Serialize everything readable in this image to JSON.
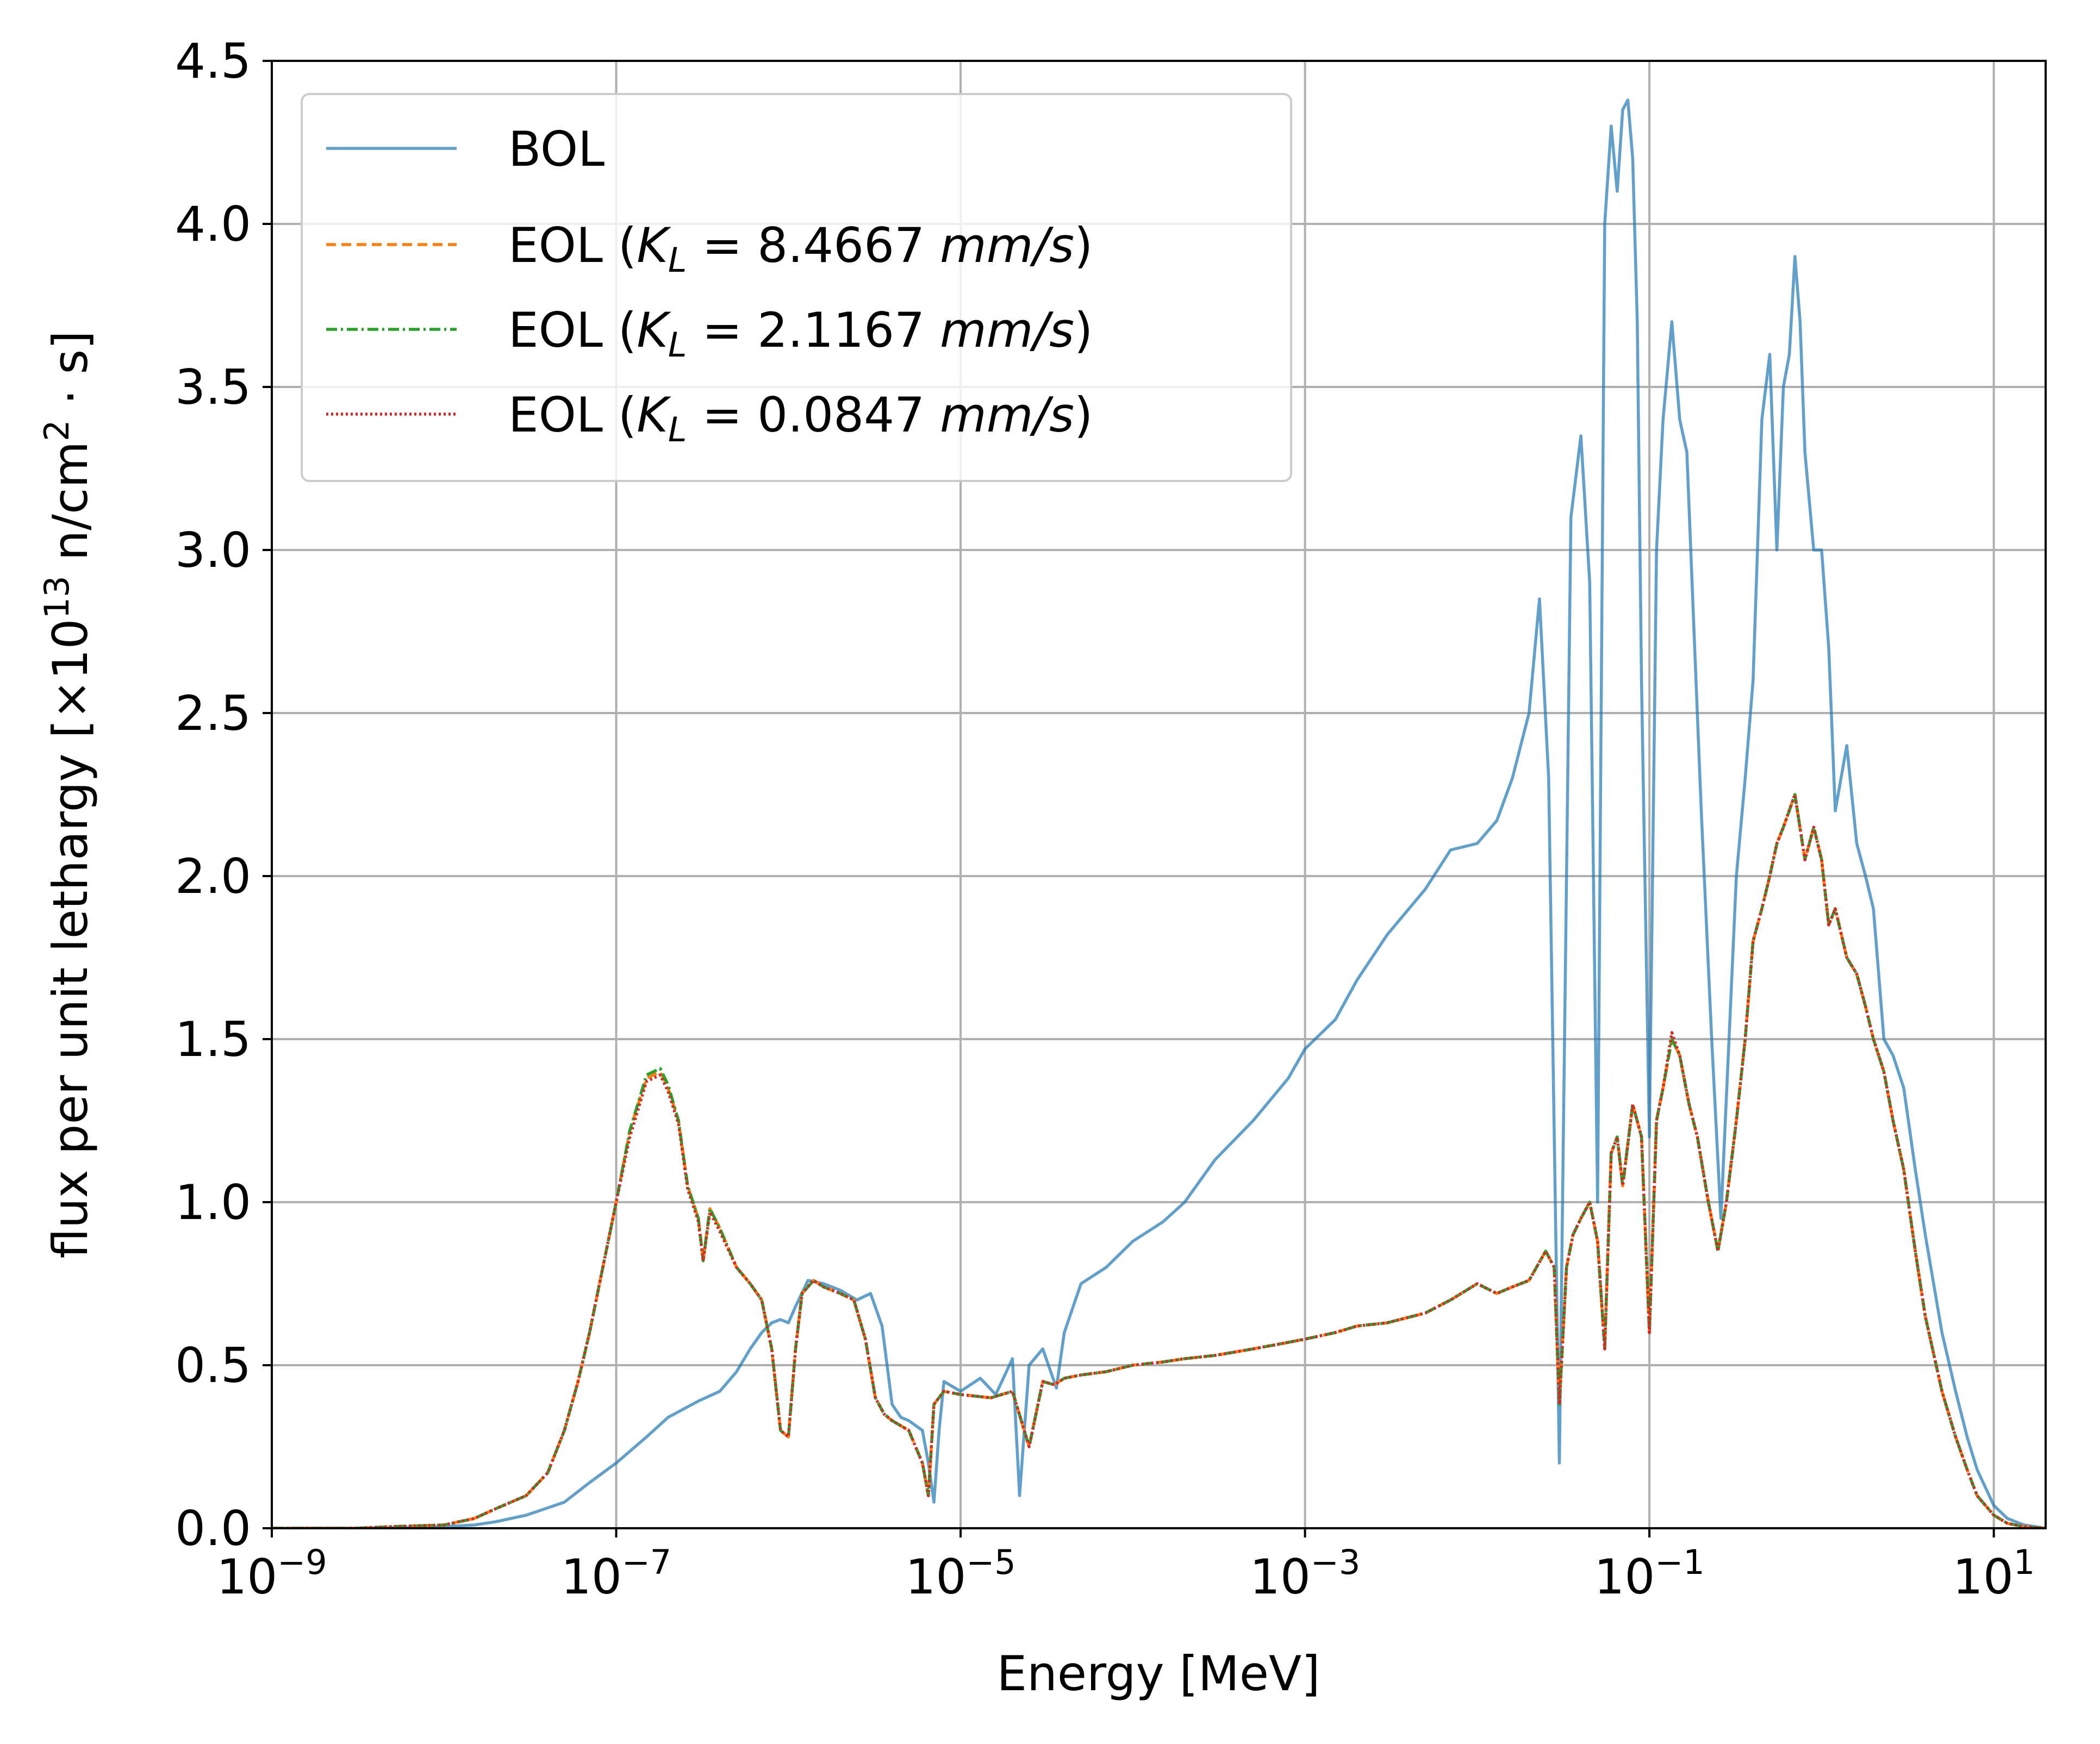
{
  "chart_data": {
    "type": "line",
    "title": "",
    "xlabel": "Energy [MeV]",
    "ylabel": {
      "main": "flux per unit lethargy [",
      "times": "×10",
      "exp": "13",
      "unit": " n/cm",
      "unit_exp": "2",
      "tail": " · s]"
    },
    "xscale": "log",
    "xlim": [
      1e-09,
      20
    ],
    "ylim": [
      0,
      4.5
    ],
    "grid": true,
    "legend_position": "top-left",
    "x_ticks": [
      {
        "value": 1e-09,
        "base": "10",
        "exp": "−9"
      },
      {
        "value": 1e-07,
        "base": "10",
        "exp": "−7"
      },
      {
        "value": 1e-05,
        "base": "10",
        "exp": "−5"
      },
      {
        "value": 0.001,
        "base": "10",
        "exp": "−3"
      },
      {
        "value": 0.1,
        "base": "10",
        "exp": "−1"
      },
      {
        "value": 10,
        "base": "10",
        "exp": "1"
      }
    ],
    "y_ticks": [
      {
        "value": 0,
        "label": "0.0"
      },
      {
        "value": 0.5,
        "label": "0.5"
      },
      {
        "value": 1,
        "label": "1.0"
      },
      {
        "value": 1.5,
        "label": "1.5"
      },
      {
        "value": 2,
        "label": "2.0"
      },
      {
        "value": 2.5,
        "label": "2.5"
      },
      {
        "value": 3,
        "label": "3.0"
      },
      {
        "value": 3.5,
        "label": "3.5"
      },
      {
        "value": 4,
        "label": "4.0"
      },
      {
        "value": 4.5,
        "label": "4.5"
      }
    ],
    "series": [
      {
        "name": "BOL",
        "legend": {
          "prefix": "BOL",
          "value": ""
        },
        "color": "#1f77b4",
        "dash": "solid",
        "opacity": 0.7,
        "x": [
          1e-09,
          3e-09,
          1e-08,
          1.5e-08,
          2e-08,
          3e-08,
          5e-08,
          7e-08,
          1e-07,
          1.5e-07,
          2e-07,
          3e-07,
          4e-07,
          5e-07,
          6e-07,
          7e-07,
          8e-07,
          9e-07,
          1e-06,
          1.1e-06,
          1.3e-06,
          1.6e-06,
          2e-06,
          2.5e-06,
          3e-06,
          3.5e-06,
          4e-06,
          4.5e-06,
          5e-06,
          6e-06,
          6.5e-06,
          7e-06,
          7.5e-06,
          8e-06,
          1e-05,
          1.3e-05,
          1.6e-05,
          2e-05,
          2.2e-05,
          2.5e-05,
          3e-05,
          3.6e-05,
          4e-05,
          5e-05,
          7e-05,
          0.0001,
          0.00015,
          0.0002,
          0.0003,
          0.0005,
          0.0008,
          0.001,
          0.0015,
          0.002,
          0.003,
          0.005,
          0.007,
          0.01,
          0.013,
          0.016,
          0.02,
          0.023,
          0.026,
          0.03,
          0.035,
          0.04,
          0.045,
          0.05,
          0.055,
          0.06,
          0.065,
          0.07,
          0.075,
          0.08,
          0.085,
          0.09,
          0.1,
          0.11,
          0.12,
          0.135,
          0.15,
          0.165,
          0.18,
          0.2,
          0.23,
          0.26,
          0.29,
          0.32,
          0.36,
          0.4,
          0.45,
          0.5,
          0.55,
          0.6,
          0.65,
          0.7,
          0.75,
          0.8,
          0.9,
          1.0,
          1.1,
          1.2,
          1.4,
          1.6,
          1.8,
          2.0,
          2.3,
          2.6,
          3.0,
          3.5,
          4.0,
          5.0,
          6.0,
          7.0,
          8.0,
          10.0,
          12.0,
          15.0,
          20.0
        ],
        "y": [
          0.0,
          0.0,
          0.005,
          0.01,
          0.02,
          0.04,
          0.08,
          0.14,
          0.2,
          0.28,
          0.34,
          0.39,
          0.42,
          0.48,
          0.55,
          0.6,
          0.63,
          0.64,
          0.63,
          0.68,
          0.76,
          0.75,
          0.73,
          0.7,
          0.72,
          0.62,
          0.38,
          0.34,
          0.33,
          0.3,
          0.2,
          0.08,
          0.3,
          0.45,
          0.42,
          0.46,
          0.41,
          0.52,
          0.1,
          0.5,
          0.55,
          0.43,
          0.6,
          0.75,
          0.8,
          0.88,
          0.94,
          1.0,
          1.13,
          1.25,
          1.38,
          1.47,
          1.56,
          1.68,
          1.82,
          1.96,
          2.08,
          2.1,
          2.17,
          2.3,
          2.5,
          2.85,
          2.3,
          0.2,
          3.1,
          3.35,
          2.9,
          1.0,
          4.0,
          4.3,
          4.1,
          4.35,
          4.38,
          4.2,
          3.7,
          2.6,
          1.2,
          3.0,
          3.4,
          3.7,
          3.4,
          3.3,
          2.8,
          2.2,
          1.5,
          0.95,
          1.5,
          2.0,
          2.3,
          2.6,
          3.4,
          3.6,
          3.0,
          3.5,
          3.6,
          3.9,
          3.7,
          3.3,
          3.0,
          3.0,
          2.7,
          2.2,
          2.4,
          2.1,
          2.0,
          1.9,
          1.5,
          1.45,
          1.35,
          1.1,
          0.9,
          0.6,
          0.42,
          0.28,
          0.18,
          0.07,
          0.03,
          0.01,
          0.0
        ]
      },
      {
        "name": "EOL (K_L = 8.4667 mm/s)",
        "legend": {
          "prefix": "EOL (",
          "value": " = 8.4667 ",
          "unit": "mm/s",
          "suffix": ")"
        },
        "color": "#ff7f0e",
        "dash": "18,10",
        "opacity": 1,
        "x": [
          1e-09,
          3e-09,
          5e-09,
          1e-08,
          1.5e-08,
          2e-08,
          3e-08,
          4e-08,
          5e-08,
          6e-08,
          7e-08,
          8e-08,
          1e-07,
          1.2e-07,
          1.5e-07,
          1.8e-07,
          2e-07,
          2.3e-07,
          2.6e-07,
          3e-07,
          3.2e-07,
          3.5e-07,
          4e-07,
          5e-07,
          6e-07,
          7e-07,
          8e-07,
          9e-07,
          1e-06,
          1.1e-06,
          1.2e-06,
          1.4e-06,
          1.6e-06,
          2e-06,
          2.4e-06,
          2.8e-06,
          3.2e-06,
          3.6e-06,
          4e-06,
          5e-06,
          6e-06,
          6.5e-06,
          7e-06,
          8e-06,
          1e-05,
          1.5e-05,
          2e-05,
          2.5e-05,
          3e-05,
          3.5e-05,
          4e-05,
          5e-05,
          7e-05,
          0.0001,
          0.00015,
          0.0002,
          0.0003,
          0.0005,
          0.0008,
          0.001,
          0.0015,
          0.002,
          0.003,
          0.005,
          0.007,
          0.01,
          0.013,
          0.016,
          0.02,
          0.025,
          0.028,
          0.03,
          0.033,
          0.036,
          0.04,
          0.045,
          0.05,
          0.055,
          0.06,
          0.065,
          0.07,
          0.08,
          0.09,
          0.1,
          0.11,
          0.12,
          0.135,
          0.15,
          0.17,
          0.19,
          0.22,
          0.25,
          0.28,
          0.32,
          0.36,
          0.4,
          0.45,
          0.5,
          0.55,
          0.6,
          0.7,
          0.8,
          0.9,
          1.0,
          1.1,
          1.2,
          1.4,
          1.6,
          1.8,
          2.0,
          2.3,
          2.6,
          3.0,
          3.5,
          4.0,
          5.0,
          6.0,
          7.0,
          8.0,
          10.0,
          12.0,
          15.0,
          20.0
        ],
        "y": [
          0.0,
          0.0,
          0.005,
          0.01,
          0.03,
          0.06,
          0.1,
          0.17,
          0.3,
          0.45,
          0.6,
          0.75,
          1.0,
          1.22,
          1.38,
          1.4,
          1.35,
          1.25,
          1.05,
          0.95,
          0.82,
          0.98,
          0.92,
          0.8,
          0.75,
          0.7,
          0.55,
          0.3,
          0.28,
          0.55,
          0.72,
          0.76,
          0.74,
          0.72,
          0.7,
          0.58,
          0.4,
          0.35,
          0.33,
          0.3,
          0.2,
          0.1,
          0.38,
          0.42,
          0.41,
          0.4,
          0.42,
          0.25,
          0.45,
          0.44,
          0.46,
          0.47,
          0.48,
          0.5,
          0.51,
          0.52,
          0.53,
          0.55,
          0.57,
          0.58,
          0.6,
          0.62,
          0.63,
          0.66,
          0.7,
          0.75,
          0.72,
          0.74,
          0.76,
          0.85,
          0.8,
          0.38,
          0.8,
          0.9,
          0.95,
          1.0,
          0.88,
          0.55,
          1.15,
          1.2,
          1.05,
          1.3,
          1.2,
          0.6,
          1.25,
          1.35,
          1.5,
          1.45,
          1.3,
          1.2,
          1.0,
          0.85,
          1.0,
          1.25,
          1.5,
          1.8,
          1.9,
          2.0,
          2.1,
          2.15,
          2.25,
          2.05,
          2.15,
          2.05,
          1.85,
          1.9,
          1.75,
          1.7,
          1.6,
          1.5,
          1.4,
          1.25,
          1.1,
          0.85,
          0.65,
          0.42,
          0.28,
          0.18,
          0.1,
          0.04,
          0.015,
          0.005,
          0.0
        ]
      },
      {
        "name": "EOL (K_L = 2.1167 mm/s)",
        "legend": {
          "prefix": "EOL (",
          "value": " = 2.1167 ",
          "unit": "mm/s",
          "suffix": ")"
        },
        "color": "#2ca02c",
        "dash": "20,7,4,7",
        "opacity": 1,
        "x": [
          1e-09,
          3e-09,
          5e-09,
          1e-08,
          1.5e-08,
          2e-08,
          3e-08,
          4e-08,
          5e-08,
          6e-08,
          7e-08,
          8e-08,
          1e-07,
          1.2e-07,
          1.5e-07,
          1.8e-07,
          2e-07,
          2.3e-07,
          2.6e-07,
          3e-07,
          3.2e-07,
          3.5e-07,
          4e-07,
          5e-07,
          6e-07,
          7e-07,
          8e-07,
          9e-07,
          1e-06,
          1.1e-06,
          1.2e-06,
          1.4e-06,
          1.6e-06,
          2e-06,
          2.4e-06,
          2.8e-06,
          3.2e-06,
          3.6e-06,
          4e-06,
          5e-06,
          6e-06,
          6.5e-06,
          7e-06,
          8e-06,
          1e-05,
          1.5e-05,
          2e-05,
          2.5e-05,
          3e-05,
          3.5e-05,
          4e-05,
          5e-05,
          7e-05,
          0.0001,
          0.00015,
          0.0002,
          0.0003,
          0.0005,
          0.0008,
          0.001,
          0.0015,
          0.002,
          0.003,
          0.005,
          0.007,
          0.01,
          0.013,
          0.016,
          0.02,
          0.025,
          0.028,
          0.03,
          0.033,
          0.036,
          0.04,
          0.045,
          0.05,
          0.055,
          0.06,
          0.065,
          0.07,
          0.08,
          0.09,
          0.1,
          0.11,
          0.12,
          0.135,
          0.15,
          0.17,
          0.19,
          0.22,
          0.25,
          0.28,
          0.32,
          0.36,
          0.4,
          0.45,
          0.5,
          0.55,
          0.6,
          0.7,
          0.8,
          0.9,
          1.0,
          1.1,
          1.2,
          1.4,
          1.6,
          1.8,
          2.0,
          2.3,
          2.6,
          3.0,
          3.5,
          4.0,
          5.0,
          6.0,
          7.0,
          8.0,
          10.0,
          12.0,
          15.0,
          20.0
        ],
        "y": [
          0.0,
          0.0,
          0.005,
          0.01,
          0.03,
          0.06,
          0.1,
          0.17,
          0.3,
          0.45,
          0.6,
          0.75,
          1.0,
          1.22,
          1.39,
          1.41,
          1.36,
          1.25,
          1.05,
          0.95,
          0.82,
          0.98,
          0.92,
          0.8,
          0.75,
          0.7,
          0.55,
          0.3,
          0.28,
          0.55,
          0.72,
          0.76,
          0.74,
          0.72,
          0.7,
          0.58,
          0.4,
          0.35,
          0.33,
          0.3,
          0.2,
          0.1,
          0.38,
          0.42,
          0.41,
          0.4,
          0.42,
          0.25,
          0.45,
          0.44,
          0.46,
          0.47,
          0.48,
          0.5,
          0.51,
          0.52,
          0.53,
          0.55,
          0.57,
          0.58,
          0.6,
          0.62,
          0.63,
          0.66,
          0.7,
          0.75,
          0.72,
          0.74,
          0.76,
          0.85,
          0.8,
          0.38,
          0.8,
          0.9,
          0.95,
          1.0,
          0.88,
          0.55,
          1.15,
          1.2,
          1.05,
          1.3,
          1.2,
          0.6,
          1.25,
          1.35,
          1.5,
          1.45,
          1.3,
          1.2,
          1.0,
          0.85,
          1.0,
          1.25,
          1.5,
          1.8,
          1.9,
          2.0,
          2.1,
          2.15,
          2.25,
          2.05,
          2.15,
          2.05,
          1.85,
          1.9,
          1.75,
          1.7,
          1.6,
          1.5,
          1.4,
          1.25,
          1.1,
          0.85,
          0.65,
          0.42,
          0.28,
          0.18,
          0.1,
          0.04,
          0.015,
          0.005,
          0.0
        ]
      },
      {
        "name": "EOL (K_L = 0.0847 mm/s)",
        "legend": {
          "prefix": "EOL (",
          "value": " = 0.0847 ",
          "unit": "mm/s",
          "suffix": ")"
        },
        "color": "#d62728",
        "dash": "4,5",
        "opacity": 1,
        "x": [
          1e-09,
          3e-09,
          5e-09,
          1e-08,
          1.5e-08,
          2e-08,
          3e-08,
          4e-08,
          5e-08,
          6e-08,
          7e-08,
          8e-08,
          1e-07,
          1.2e-07,
          1.5e-07,
          1.8e-07,
          2e-07,
          2.3e-07,
          2.6e-07,
          3e-07,
          3.2e-07,
          3.5e-07,
          4e-07,
          5e-07,
          6e-07,
          7e-07,
          8e-07,
          9e-07,
          1e-06,
          1.1e-06,
          1.2e-06,
          1.4e-06,
          1.6e-06,
          2e-06,
          2.4e-06,
          2.8e-06,
          3.2e-06,
          3.6e-06,
          4e-06,
          5e-06,
          6e-06,
          6.5e-06,
          7e-06,
          8e-06,
          1e-05,
          1.5e-05,
          2e-05,
          2.5e-05,
          3e-05,
          3.5e-05,
          4e-05,
          5e-05,
          7e-05,
          0.0001,
          0.00015,
          0.0002,
          0.0003,
          0.0005,
          0.0008,
          0.001,
          0.0015,
          0.002,
          0.003,
          0.005,
          0.007,
          0.01,
          0.013,
          0.016,
          0.02,
          0.025,
          0.028,
          0.03,
          0.033,
          0.036,
          0.04,
          0.045,
          0.05,
          0.055,
          0.06,
          0.065,
          0.07,
          0.08,
          0.09,
          0.1,
          0.11,
          0.12,
          0.135,
          0.15,
          0.17,
          0.19,
          0.22,
          0.25,
          0.28,
          0.32,
          0.36,
          0.4,
          0.45,
          0.5,
          0.55,
          0.6,
          0.7,
          0.8,
          0.9,
          1.0,
          1.1,
          1.2,
          1.4,
          1.6,
          1.8,
          2.0,
          2.3,
          2.6,
          3.0,
          3.5,
          4.0,
          5.0,
          6.0,
          7.0,
          8.0,
          10.0,
          12.0,
          15.0,
          20.0
        ],
        "y": [
          0.0,
          0.0,
          0.005,
          0.01,
          0.03,
          0.06,
          0.1,
          0.17,
          0.3,
          0.45,
          0.6,
          0.75,
          1.0,
          1.2,
          1.37,
          1.39,
          1.34,
          1.24,
          1.04,
          0.94,
          0.82,
          0.97,
          0.91,
          0.8,
          0.75,
          0.7,
          0.55,
          0.3,
          0.28,
          0.55,
          0.72,
          0.76,
          0.74,
          0.72,
          0.7,
          0.58,
          0.4,
          0.35,
          0.33,
          0.3,
          0.2,
          0.1,
          0.38,
          0.42,
          0.41,
          0.4,
          0.42,
          0.25,
          0.45,
          0.44,
          0.46,
          0.47,
          0.48,
          0.5,
          0.51,
          0.52,
          0.53,
          0.55,
          0.57,
          0.58,
          0.6,
          0.62,
          0.63,
          0.66,
          0.7,
          0.75,
          0.72,
          0.74,
          0.76,
          0.85,
          0.8,
          0.38,
          0.8,
          0.9,
          0.95,
          1.0,
          0.88,
          0.55,
          1.15,
          1.2,
          1.05,
          1.3,
          1.2,
          0.6,
          1.25,
          1.35,
          1.52,
          1.45,
          1.3,
          1.2,
          1.0,
          0.85,
          1.0,
          1.25,
          1.5,
          1.8,
          1.9,
          2.0,
          2.1,
          2.15,
          2.25,
          2.05,
          2.15,
          2.05,
          1.85,
          1.9,
          1.75,
          1.7,
          1.6,
          1.5,
          1.4,
          1.25,
          1.1,
          0.85,
          0.65,
          0.42,
          0.28,
          0.18,
          0.1,
          0.04,
          0.015,
          0.005,
          0.0
        ]
      }
    ]
  }
}
